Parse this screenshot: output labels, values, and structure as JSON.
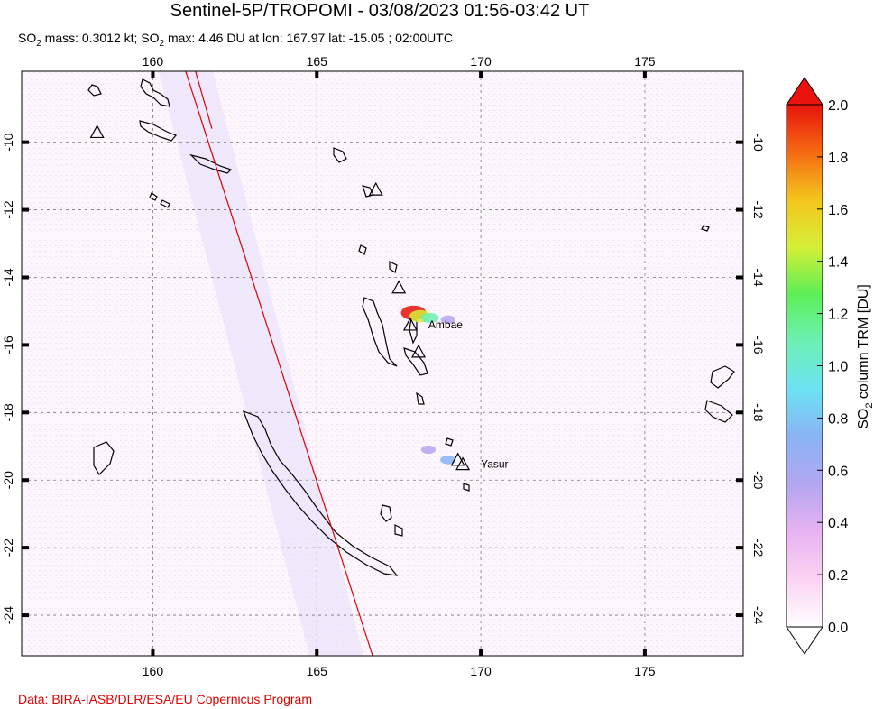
{
  "header": {
    "title": "Sentinel-5P/TROPOMI - 03/08/2023 01:56-03:42 UT",
    "subtitle_parts": [
      "SO",
      "2",
      " mass: 0.3012 kt; SO",
      "2",
      " max: 4.46 DU at lon: 167.97 lat: -15.05 ; 02:00UTC"
    ]
  },
  "footer": {
    "credit": "Data: BIRA-IASB/DLR/ESA/EU Copernicus Program"
  },
  "colors": {
    "credit": "#e00000",
    "orbit_line": "#e00000",
    "volcano_marker": "#000000"
  },
  "chart_data": {
    "type": "heatmap",
    "xlim": [
      156,
      178
    ],
    "ylim": [
      -25.2,
      -7.9
    ],
    "x_ticks": [
      160,
      165,
      170,
      175
    ],
    "y_ticks": [
      -10,
      -12,
      -14,
      -16,
      -18,
      -20,
      -22,
      -24
    ],
    "grid": true,
    "volcanoes": [
      {
        "name": "Ambae",
        "lon": 167.85,
        "lat": -15.4,
        "labeled": true
      },
      {
        "name": "Yasur",
        "lon": 169.45,
        "lat": -19.53,
        "labeled": true
      },
      {
        "name": "",
        "lon": 158.3,
        "lat": -9.7,
        "labeled": false
      },
      {
        "name": "",
        "lon": 166.8,
        "lat": -11.4,
        "labeled": false
      },
      {
        "name": "",
        "lon": 167.5,
        "lat": -14.3,
        "labeled": false
      },
      {
        "name": "",
        "lon": 168.1,
        "lat": -16.2,
        "labeled": false
      },
      {
        "name": "",
        "lon": 169.3,
        "lat": -19.4,
        "labeled": false
      }
    ],
    "so2_plumes": [
      {
        "lon": 167.95,
        "lat": -15.05,
        "du": 2.0
      },
      {
        "lon": 168.15,
        "lat": -15.15,
        "du": 1.5
      },
      {
        "lon": 168.45,
        "lat": -15.2,
        "du": 1.0
      },
      {
        "lon": 169.0,
        "lat": -15.25,
        "du": 0.6
      },
      {
        "lon": 168.4,
        "lat": -19.1,
        "du": 0.6
      },
      {
        "lon": 169.0,
        "lat": -19.4,
        "du": 0.7
      }
    ],
    "orbit_lines": [
      {
        "start": [
          161.0,
          -7.9
        ],
        "end": [
          166.7,
          -25.2
        ]
      },
      {
        "start": [
          161.3,
          -7.9
        ],
        "end": [
          161.8,
          -9.6
        ]
      }
    ],
    "colorbar": {
      "label_parts": [
        "SO",
        "2",
        " column TRM [DU]"
      ],
      "min": 0.0,
      "max": 2.0,
      "ticks": [
        "0.0",
        "0.2",
        "0.4",
        "0.6",
        "0.8",
        "1.0",
        "1.2",
        "1.4",
        "1.6",
        "1.8",
        "2.0"
      ],
      "stops": [
        "#ffffff",
        "#fbd3f3",
        "#e7b3f1",
        "#b3a6f0",
        "#8ab3f5",
        "#6ce2f3",
        "#6cf0b5",
        "#5cef57",
        "#d5ef36",
        "#f4c51d",
        "#f56a12",
        "#e8130d"
      ]
    }
  }
}
